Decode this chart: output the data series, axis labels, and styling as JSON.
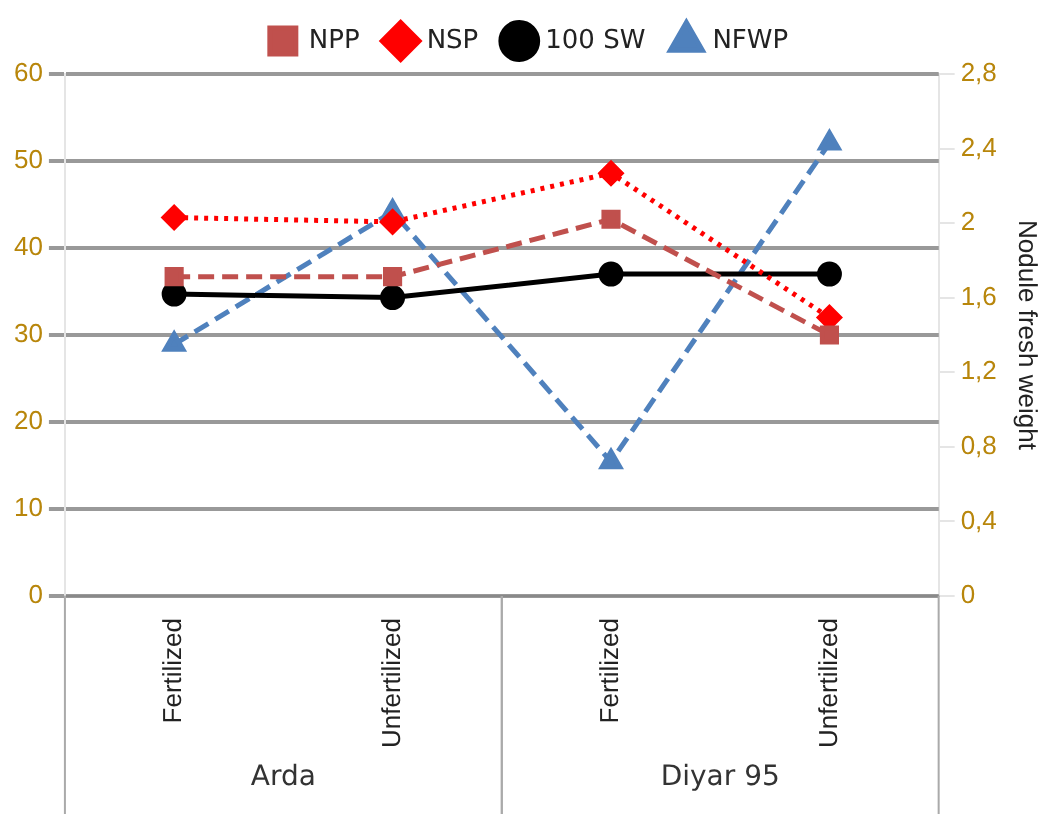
{
  "chart_data": {
    "type": "line",
    "categories": [
      "Fertilized",
      "Unfertilized",
      "Fertilized",
      "Unfertilized"
    ],
    "series": [
      {
        "name": "NPP",
        "color": "#c0504d",
        "values": [
          36.7,
          36.7,
          43.3,
          30
        ],
        "marker": "square",
        "line_style": "dashed"
      },
      {
        "name": "NSP",
        "color": "#ff0000",
        "values": [
          43.5,
          43,
          48.6,
          32
        ],
        "marker": "diamond",
        "line_style": "dotted"
      },
      {
        "name": "100 SW",
        "color": "#000000",
        "values": [
          34.7,
          34.3,
          37,
          37
        ],
        "marker": "circle",
        "line_style": "solid"
      },
      {
        "name": "NFWP",
        "color": "#4f81bd",
        "values": [
          1.35,
          2.06,
          0.72,
          2.43
        ],
        "marker": "triangle",
        "line_style": "dashed",
        "axis": "y2"
      }
    ],
    "ylim": [
      0,
      60
    ],
    "yticks": [
      0,
      10,
      20,
      30,
      40,
      50,
      60
    ],
    "y2lim": [
      0,
      2.8
    ],
    "y2ticks": [
      0,
      {
        "value": 0.4,
        "label": "0,4"
      },
      {
        "value": 0.8,
        "label": "0,8"
      },
      {
        "value": 1.2,
        "label": "1,2"
      },
      {
        "value": 1.6,
        "label": "1,6"
      },
      2,
      {
        "value": 2.4,
        "label": "2,4"
      },
      {
        "value": 2.8,
        "label": "2,8"
      }
    ],
    "y2label": "Nodule fresh weight",
    "annotations": [
      "Arda",
      "Diyar 95"
    ],
    "grid": "y",
    "legend": "top"
  }
}
